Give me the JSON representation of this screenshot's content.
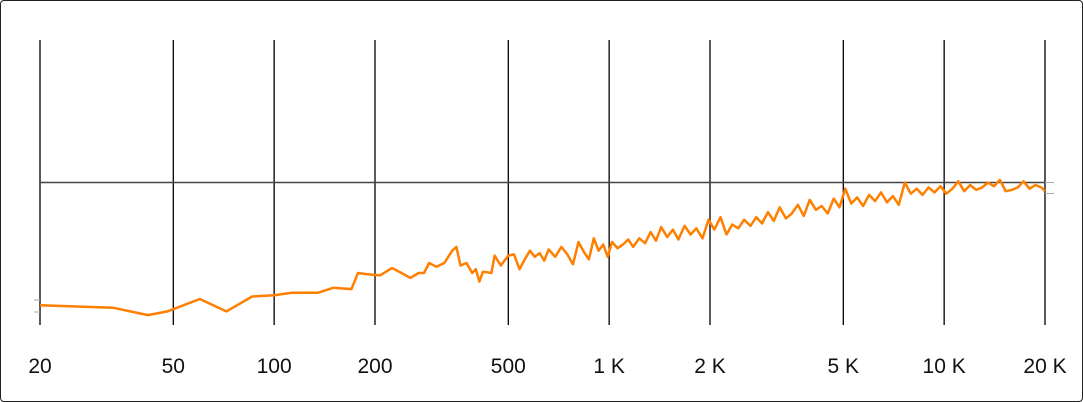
{
  "chart_data": {
    "type": "line",
    "title": "",
    "xlabel": "",
    "ylabel": "",
    "x_scale": "log",
    "xlim": [
      20,
      20000
    ],
    "ylim": [
      -1.15,
      1.15
    ],
    "reference_line": 0,
    "grid": "vertical",
    "x_ticks": [
      {
        "value": 20,
        "label": "20"
      },
      {
        "value": 50,
        "label": "50"
      },
      {
        "value": 100,
        "label": "100"
      },
      {
        "value": 200,
        "label": "200"
      },
      {
        "value": 500,
        "label": "500"
      },
      {
        "value": 1000,
        "label": "1 K"
      },
      {
        "value": 2000,
        "label": "2 K"
      },
      {
        "value": 5000,
        "label": "5 K"
      },
      {
        "value": 10000,
        "label": "10 K"
      },
      {
        "value": 20000,
        "label": "20 K"
      }
    ],
    "series": [
      {
        "color": "#ff7f00",
        "x": [
          20,
          33,
          42,
          48,
          60,
          72,
          86,
          100,
          113,
          135,
          150,
          170,
          178,
          190,
          207,
          225,
          240,
          255,
          270,
          280,
          290,
          305,
          322,
          340,
          350,
          360,
          375,
          390,
          400,
          410,
          420,
          445,
          455,
          475,
          500,
          520,
          540,
          560,
          580,
          600,
          620,
          640,
          660,
          690,
          720,
          750,
          780,
          810,
          840,
          870,
          900,
          930,
          960,
          990,
          1020,
          1060,
          1100,
          1140,
          1180,
          1230,
          1280,
          1330,
          1380,
          1430,
          1490,
          1550,
          1610,
          1680,
          1750,
          1820,
          1900,
          1980,
          2060,
          2150,
          2240,
          2330,
          2430,
          2530,
          2640,
          2750,
          2860,
          2980,
          3100,
          3230,
          3370,
          3510,
          3660,
          3810,
          3970,
          4140,
          4310,
          4490,
          4680,
          4870,
          5070,
          5280,
          5500,
          5730,
          5970,
          6220,
          6480,
          6750,
          7030,
          7320,
          7630,
          7950,
          8280,
          8620,
          8980,
          9360,
          9750,
          10150,
          10580,
          11020,
          11480,
          11960,
          12460,
          12980,
          13520,
          14080,
          14670,
          15280,
          15920,
          16580,
          17270,
          17990,
          18740,
          19520,
          20000
        ],
        "y": [
          -0.99,
          -1.01,
          -1.07,
          -1.04,
          -0.94,
          -1.04,
          -0.92,
          -0.91,
          -0.89,
          -0.89,
          -0.85,
          -0.86,
          -0.73,
          -0.74,
          -0.75,
          -0.69,
          -0.73,
          -0.77,
          -0.73,
          -0.73,
          -0.65,
          -0.68,
          -0.65,
          -0.55,
          -0.52,
          -0.67,
          -0.65,
          -0.73,
          -0.7,
          -0.8,
          -0.72,
          -0.73,
          -0.59,
          -0.67,
          -0.59,
          -0.58,
          -0.7,
          -0.62,
          -0.55,
          -0.6,
          -0.57,
          -0.63,
          -0.54,
          -0.6,
          -0.52,
          -0.58,
          -0.66,
          -0.48,
          -0.56,
          -0.62,
          -0.45,
          -0.55,
          -0.5,
          -0.6,
          -0.48,
          -0.53,
          -0.5,
          -0.46,
          -0.52,
          -0.45,
          -0.49,
          -0.4,
          -0.47,
          -0.36,
          -0.44,
          -0.38,
          -0.46,
          -0.35,
          -0.42,
          -0.37,
          -0.45,
          -0.3,
          -0.38,
          -0.28,
          -0.42,
          -0.34,
          -0.37,
          -0.3,
          -0.35,
          -0.28,
          -0.33,
          -0.24,
          -0.31,
          -0.2,
          -0.29,
          -0.25,
          -0.18,
          -0.27,
          -0.14,
          -0.22,
          -0.19,
          -0.25,
          -0.13,
          -0.2,
          -0.05,
          -0.17,
          -0.12,
          -0.19,
          -0.1,
          -0.15,
          -0.08,
          -0.16,
          -0.11,
          -0.18,
          0.0,
          -0.09,
          -0.05,
          -0.1,
          -0.04,
          -0.08,
          -0.03,
          -0.09,
          -0.05,
          0.01,
          -0.07,
          -0.02,
          -0.06,
          -0.04,
          0.0,
          -0.03,
          0.02,
          -0.07,
          -0.06,
          -0.04,
          0.01,
          -0.05,
          -0.02,
          -0.04,
          -0.07
        ]
      }
    ]
  }
}
